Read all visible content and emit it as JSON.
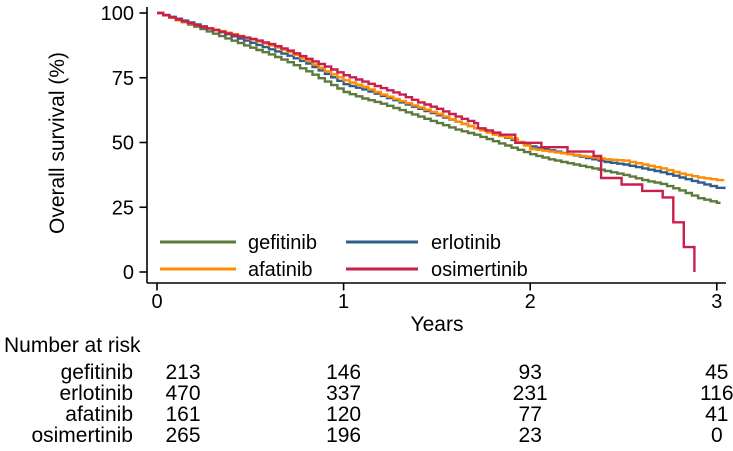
{
  "chart_data": {
    "type": "line",
    "subtype": "kaplan-meier-step",
    "title": "",
    "xlabel": "Years",
    "ylabel": "Overall survival (%)",
    "xlim": [
      0,
      3
    ],
    "ylim": [
      0,
      100
    ],
    "x_ticks": [
      0,
      1,
      2,
      3
    ],
    "y_ticks": [
      0,
      25,
      50,
      75,
      100
    ],
    "grid": false,
    "legend_position": "inside-bottom-left-two-columns",
    "series": [
      {
        "name": "gefitinib",
        "color": "#5b7a3b",
        "points": [
          [
            0,
            100
          ],
          [
            0.1,
            97.3
          ],
          [
            0.2,
            94.7
          ],
          [
            0.3,
            92
          ],
          [
            0.4,
            89.3
          ],
          [
            0.5,
            86.6
          ],
          [
            0.6,
            84
          ],
          [
            0.7,
            81
          ],
          [
            0.8,
            77.5
          ],
          [
            0.9,
            73.5
          ],
          [
            1,
            69.5
          ],
          [
            1.1,
            67
          ],
          [
            1.2,
            65
          ],
          [
            1.3,
            62.5
          ],
          [
            1.4,
            60
          ],
          [
            1.5,
            57.5
          ],
          [
            1.6,
            55
          ],
          [
            1.7,
            53
          ],
          [
            1.8,
            50.5
          ],
          [
            1.9,
            48
          ],
          [
            2,
            45.5
          ],
          [
            2.1,
            43.5
          ],
          [
            2.2,
            42
          ],
          [
            2.3,
            40.5
          ],
          [
            2.4,
            39
          ],
          [
            2.5,
            37.5
          ],
          [
            2.6,
            35.5
          ],
          [
            2.7,
            34
          ],
          [
            2.8,
            31.5
          ],
          [
            2.9,
            28.5
          ],
          [
            3,
            26.7
          ],
          [
            3.02,
            26.7
          ]
        ]
      },
      {
        "name": "erlotinib",
        "color": "#2e5f8c",
        "points": [
          [
            0,
            100
          ],
          [
            0.1,
            97.8
          ],
          [
            0.2,
            95.6
          ],
          [
            0.3,
            93.4
          ],
          [
            0.4,
            91
          ],
          [
            0.5,
            88.5
          ],
          [
            0.6,
            86
          ],
          [
            0.7,
            83.5
          ],
          [
            0.8,
            80.5
          ],
          [
            0.9,
            76.5
          ],
          [
            1,
            72.5
          ],
          [
            1.1,
            70.5
          ],
          [
            1.2,
            68
          ],
          [
            1.3,
            65.5
          ],
          [
            1.4,
            63
          ],
          [
            1.5,
            60.5
          ],
          [
            1.6,
            58
          ],
          [
            1.7,
            55.5
          ],
          [
            1.8,
            53.5
          ],
          [
            1.9,
            51
          ],
          [
            2,
            48.5
          ],
          [
            2.1,
            47
          ],
          [
            2.2,
            45.5
          ],
          [
            2.3,
            44
          ],
          [
            2.4,
            42.5
          ],
          [
            2.5,
            41.5
          ],
          [
            2.6,
            40
          ],
          [
            2.7,
            38.5
          ],
          [
            2.8,
            36.5
          ],
          [
            2.9,
            34.5
          ],
          [
            3,
            32.5
          ],
          [
            3.04,
            32
          ]
        ]
      },
      {
        "name": "afatinib",
        "color": "#ff8c05",
        "points": [
          [
            0,
            100
          ],
          [
            0.1,
            97.2
          ],
          [
            0.2,
            95.2
          ],
          [
            0.3,
            93.6
          ],
          [
            0.4,
            91.8
          ],
          [
            0.5,
            89.8
          ],
          [
            0.6,
            87.5
          ],
          [
            0.7,
            85
          ],
          [
            0.8,
            81.5
          ],
          [
            0.9,
            77.5
          ],
          [
            1,
            74
          ],
          [
            1.1,
            71.5
          ],
          [
            1.2,
            68.5
          ],
          [
            1.3,
            66
          ],
          [
            1.4,
            63.5
          ],
          [
            1.5,
            61
          ],
          [
            1.6,
            58
          ],
          [
            1.7,
            55.5
          ],
          [
            1.8,
            53
          ],
          [
            1.9,
            51.5
          ],
          [
            2,
            47.5
          ],
          [
            2.1,
            46.5
          ],
          [
            2.2,
            45.5
          ],
          [
            2.3,
            44.5
          ],
          [
            2.4,
            43.5
          ],
          [
            2.5,
            43
          ],
          [
            2.6,
            41.5
          ],
          [
            2.7,
            40
          ],
          [
            2.8,
            38
          ],
          [
            2.9,
            36.5
          ],
          [
            3,
            35.5
          ],
          [
            3.04,
            35.5
          ]
        ]
      },
      {
        "name": "osimertinib",
        "color": "#c81f4c",
        "points": [
          [
            0,
            100
          ],
          [
            0.1,
            97.5
          ],
          [
            0.2,
            95.3
          ],
          [
            0.3,
            93.4
          ],
          [
            0.4,
            91.5
          ],
          [
            0.5,
            90
          ],
          [
            0.6,
            88
          ],
          [
            0.7,
            85.5
          ],
          [
            0.8,
            82.3
          ],
          [
            0.9,
            79.3
          ],
          [
            1,
            76
          ],
          [
            1.1,
            73.5
          ],
          [
            1.2,
            71
          ],
          [
            1.3,
            68.5
          ],
          [
            1.4,
            65.5
          ],
          [
            1.5,
            63
          ],
          [
            1.6,
            60
          ],
          [
            1.7,
            57.5
          ],
          [
            1.72,
            55.5
          ],
          [
            1.84,
            53
          ],
          [
            1.92,
            49.9
          ],
          [
            2.34,
            44.8
          ],
          [
            2.38,
            36.3
          ],
          [
            2.71,
            28.8
          ],
          [
            2.88,
            0
          ]
        ]
      }
    ],
    "legend_rows": [
      [
        "gefitinib",
        "erlotinib"
      ],
      [
        "afatinib",
        "osimertinib"
      ]
    ]
  },
  "risk_table": {
    "title": "Number at risk",
    "time_points": [
      0,
      1,
      2,
      3
    ],
    "rows": [
      {
        "label": "gefitinib",
        "values": [
          213,
          146,
          93,
          45
        ]
      },
      {
        "label": "erlotinib",
        "values": [
          470,
          337,
          231,
          116
        ]
      },
      {
        "label": "afatinib",
        "values": [
          161,
          120,
          77,
          41
        ]
      },
      {
        "label": "osimertinib",
        "values": [
          265,
          196,
          23,
          0
        ]
      }
    ]
  }
}
